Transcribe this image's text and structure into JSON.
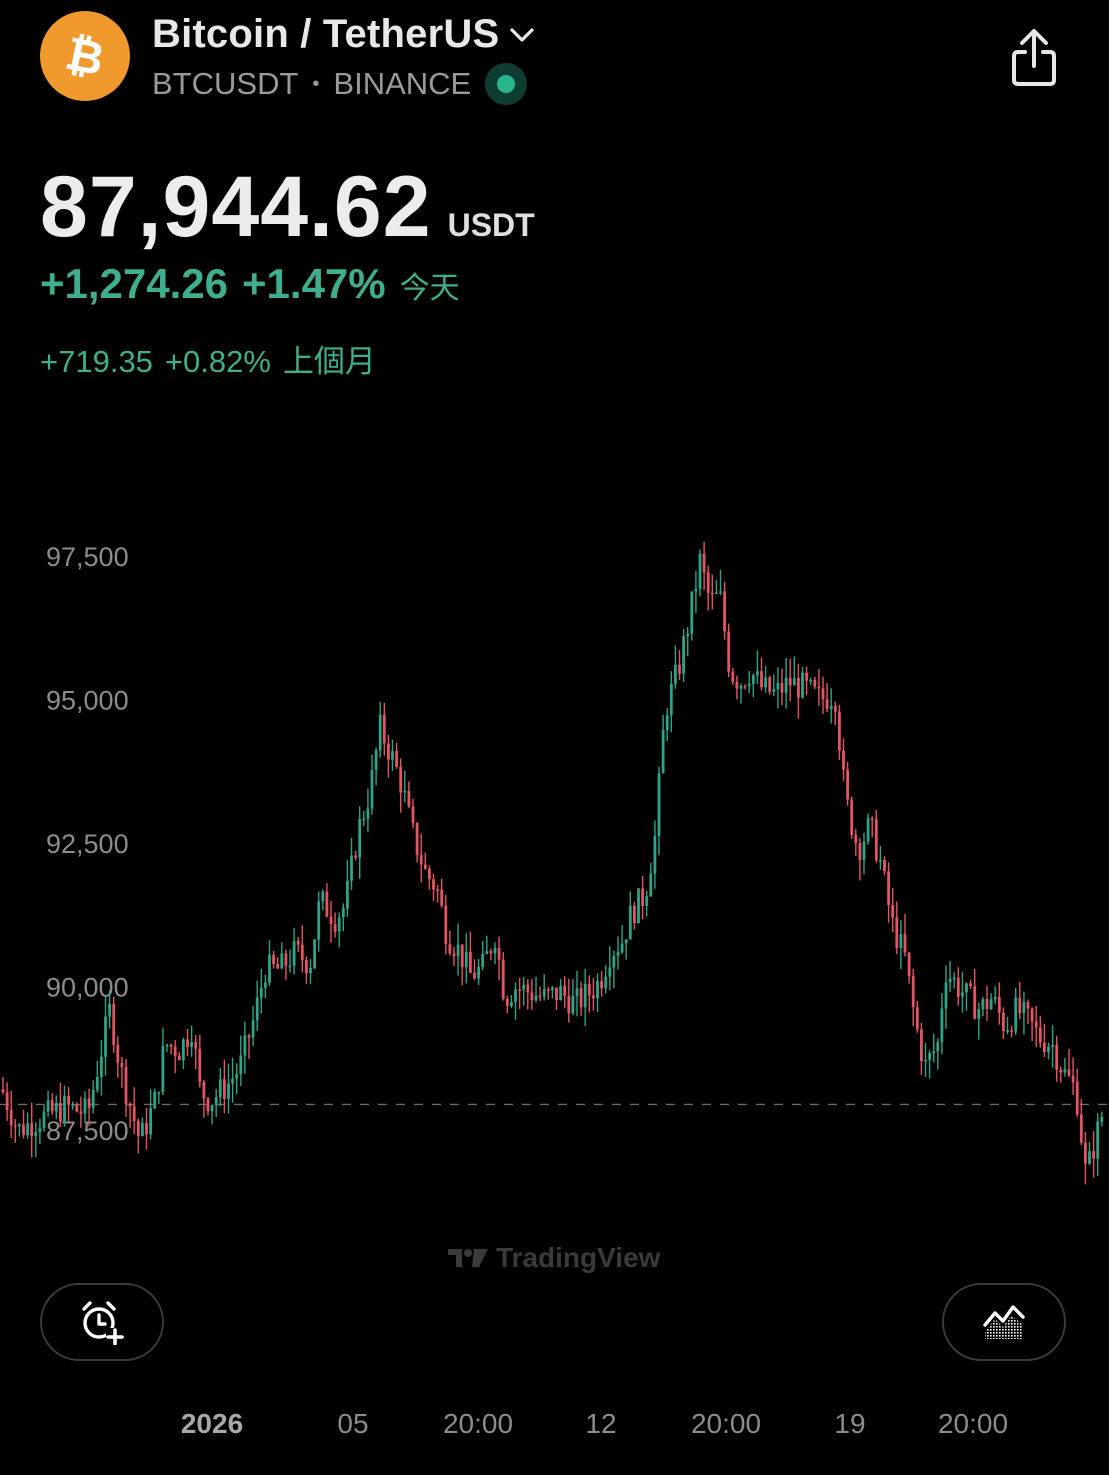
{
  "header": {
    "title": "Bitcoin / TetherUS",
    "symbol": "BTCUSDT",
    "separator": "•",
    "exchange": "BINANCE",
    "logo_icon": "bitcoin-logo-icon",
    "brand_color": "#f09a2e",
    "live_status_color": "#28b58f"
  },
  "price": {
    "last": "87,944.62",
    "unit": "USDT"
  },
  "change_today": {
    "absolute": "+1,274.26",
    "percent": "+1.47%",
    "period_label": "今天"
  },
  "change_month": {
    "absolute": "+719.35",
    "percent": "+0.82%",
    "period_label": "上個月"
  },
  "colors": {
    "up": "#2ea386",
    "down": "#e25563",
    "positive_text": "#3fae8e"
  },
  "watermark": "TradingView",
  "buttons": {
    "alert_icon": "add-alarm-icon",
    "chart_style_icon": "area-chart-icon"
  },
  "chart_data": {
    "type": "candlestick",
    "y_ticks": [
      "97,500",
      "95,000",
      "92,500",
      "90,000",
      "87,500"
    ],
    "x_ticks": [
      "2026",
      "05",
      "20:00",
      "12",
      "20:00",
      "19",
      "20:00"
    ],
    "ylim": [
      86300,
      98000
    ],
    "reference_price": 87944.62,
    "grid": false,
    "close_path": [
      [
        0,
        88300
      ],
      [
        18,
        87500
      ],
      [
        40,
        87700
      ],
      [
        65,
        87900
      ],
      [
        88,
        87800
      ],
      [
        110,
        89600
      ],
      [
        120,
        88600
      ],
      [
        140,
        87300
      ],
      [
        155,
        88000
      ],
      [
        165,
        89000
      ],
      [
        180,
        88900
      ],
      [
        192,
        89300
      ],
      [
        200,
        88200
      ],
      [
        210,
        88000
      ],
      [
        228,
        88300
      ],
      [
        240,
        88600
      ],
      [
        255,
        89500
      ],
      [
        265,
        90300
      ],
      [
        280,
        90300
      ],
      [
        295,
        90600
      ],
      [
        310,
        90400
      ],
      [
        320,
        91500
      ],
      [
        335,
        91200
      ],
      [
        345,
        91400
      ],
      [
        358,
        92700
      ],
      [
        370,
        93400
      ],
      [
        380,
        94500
      ],
      [
        392,
        94000
      ],
      [
        402,
        93500
      ],
      [
        412,
        92700
      ],
      [
        425,
        92000
      ],
      [
        437,
        91700
      ],
      [
        447,
        90900
      ],
      [
        460,
        90600
      ],
      [
        470,
        90200
      ],
      [
        482,
        90300
      ],
      [
        495,
        90900
      ],
      [
        505,
        89800
      ],
      [
        515,
        90000
      ],
      [
        530,
        89900
      ],
      [
        545,
        89800
      ],
      [
        560,
        89900
      ],
      [
        575,
        89700
      ],
      [
        590,
        89900
      ],
      [
        600,
        90100
      ],
      [
        610,
        90600
      ],
      [
        622,
        90800
      ],
      [
        632,
        91300
      ],
      [
        645,
        91600
      ],
      [
        655,
        92600
      ],
      [
        665,
        94800
      ],
      [
        678,
        95500
      ],
      [
        688,
        96300
      ],
      [
        700,
        97400
      ],
      [
        710,
        96700
      ],
      [
        720,
        96800
      ],
      [
        730,
        95500
      ],
      [
        740,
        95300
      ],
      [
        750,
        95500
      ],
      [
        762,
        95200
      ],
      [
        775,
        95100
      ],
      [
        790,
        95300
      ],
      [
        805,
        95200
      ],
      [
        820,
        95000
      ],
      [
        835,
        95100
      ],
      [
        845,
        93300
      ],
      [
        858,
        92400
      ],
      [
        870,
        92800
      ],
      [
        880,
        92200
      ],
      [
        892,
        91100
      ],
      [
        905,
        90500
      ],
      [
        915,
        89400
      ],
      [
        925,
        88600
      ],
      [
        938,
        89000
      ],
      [
        945,
        90300
      ],
      [
        958,
        90000
      ],
      [
        968,
        89800
      ],
      [
        980,
        89600
      ],
      [
        992,
        89800
      ],
      [
        1005,
        89300
      ],
      [
        1017,
        89600
      ],
      [
        1028,
        89400
      ],
      [
        1040,
        89100
      ],
      [
        1052,
        89000
      ],
      [
        1064,
        88500
      ],
      [
        1076,
        88200
      ],
      [
        1086,
        86700
      ],
      [
        1095,
        87300
      ],
      [
        1104,
        87900
      ]
    ]
  }
}
